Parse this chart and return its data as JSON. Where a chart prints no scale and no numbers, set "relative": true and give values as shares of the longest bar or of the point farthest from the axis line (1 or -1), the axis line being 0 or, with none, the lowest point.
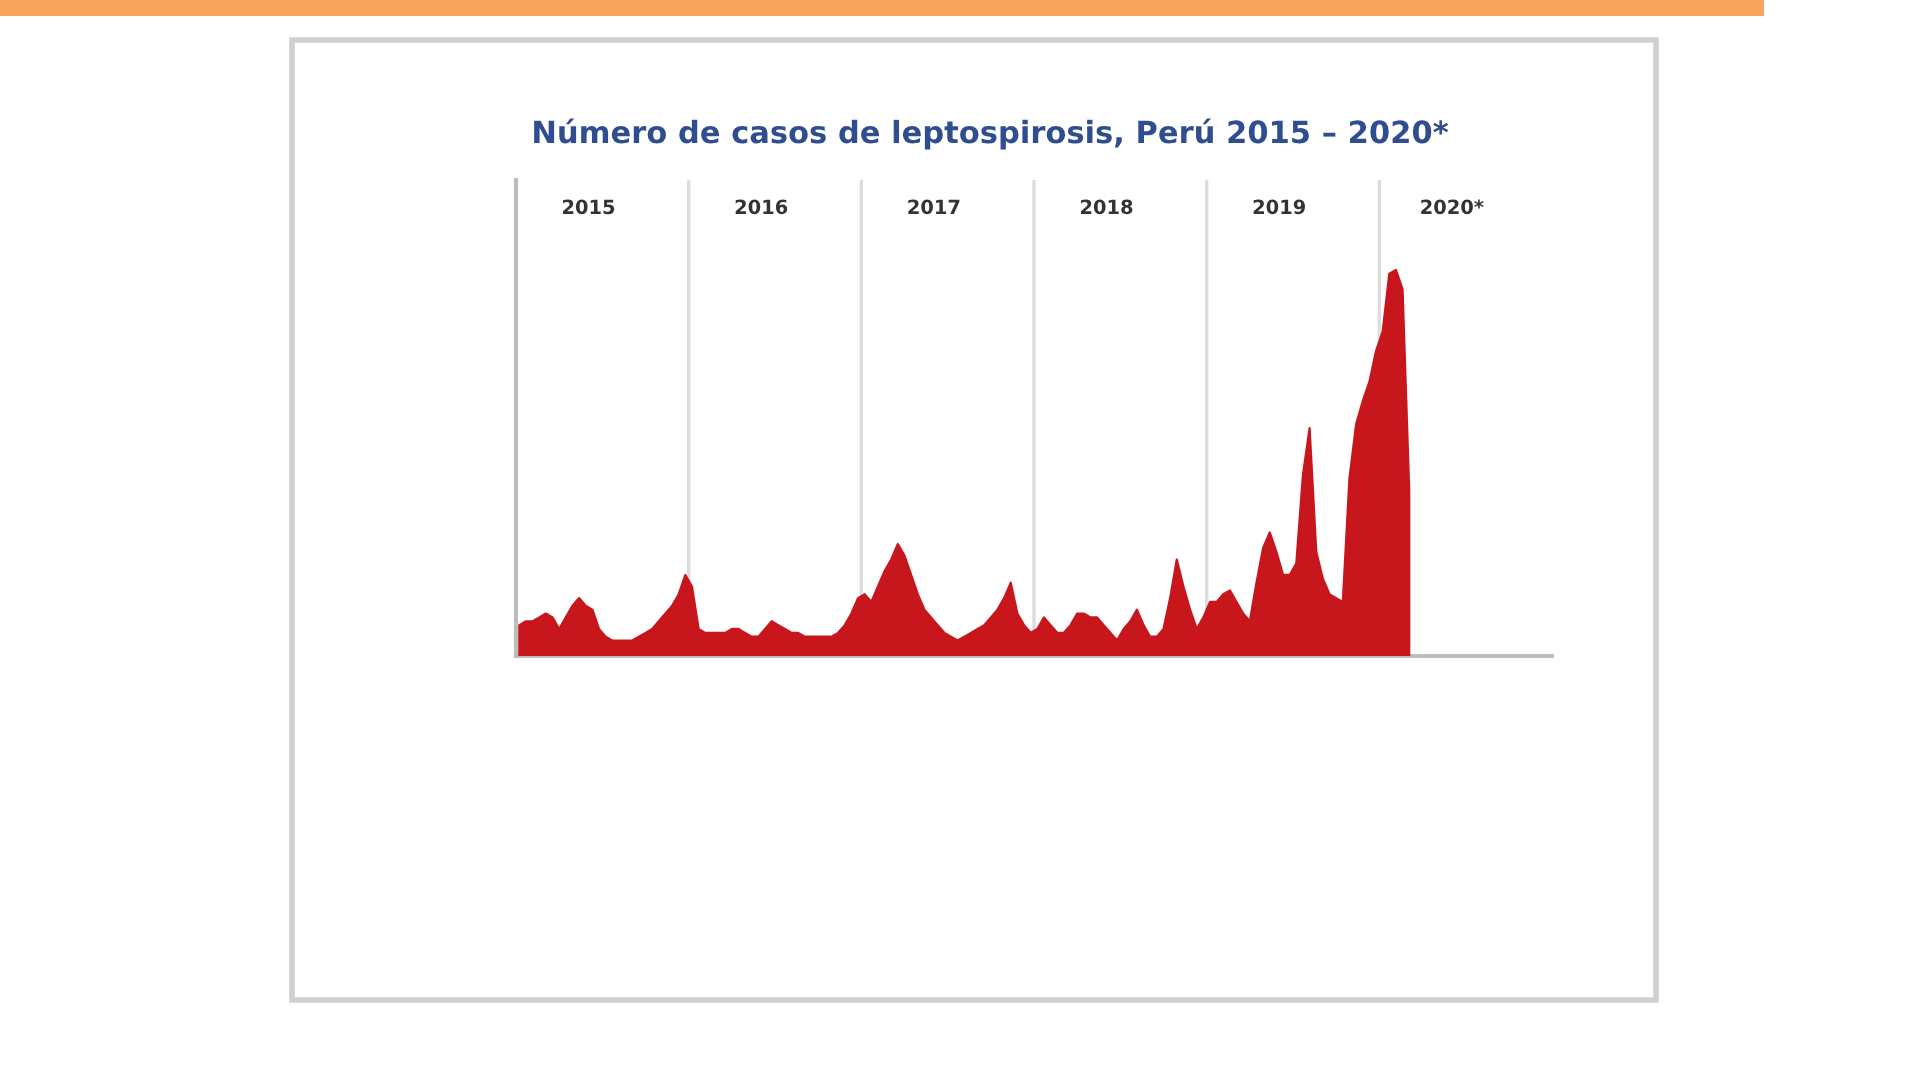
{
  "chart_data": {
    "type": "area",
    "title": "Número de casos de leptospirosis, Perú 2015 – 2020*",
    "relative": true,
    "categories": [
      null,
      null,
      null,
      null,
      null,
      null,
      null,
      null,
      null,
      null,
      null,
      null,
      null,
      null,
      null,
      null,
      null,
      null,
      null,
      null,
      null,
      null,
      null,
      null,
      null,
      null,
      null,
      null,
      null,
      null,
      null,
      null,
      null,
      null,
      null,
      null,
      null,
      null,
      null,
      null,
      null,
      null,
      null,
      null,
      null,
      null,
      null,
      null,
      null,
      null,
      null,
      null,
      null,
      null,
      null,
      null,
      null,
      null,
      null,
      null,
      null,
      null,
      null,
      null,
      null,
      null,
      null,
      null,
      null,
      null,
      null,
      null,
      null,
      null,
      null,
      null,
      null,
      null,
      null,
      null,
      null,
      null,
      null,
      null,
      null,
      null,
      null,
      null,
      null,
      null,
      null,
      null,
      null,
      null,
      null,
      null,
      null,
      null,
      null,
      null,
      null,
      null,
      null,
      null,
      null,
      null,
      null,
      null,
      null,
      null,
      null,
      null,
      null,
      null,
      null,
      null,
      null,
      null,
      null,
      null,
      null,
      null,
      null,
      null,
      null,
      null,
      null,
      null,
      null,
      null,
      null,
      null,
      null,
      null,
      null,
      null,
      null,
      null,
      null,
      null,
      null,
      null,
      null,
      null,
      null,
      null,
      null,
      null,
      null,
      null,
      null,
      null,
      null,
      null,
      null,
      null
    ],
    "series": [
      {
        "color": "#c8161d",
        "values": [
          0.08,
          0.09,
          0.09,
          0.1,
          0.11,
          0.1,
          0.07,
          0.1,
          0.13,
          0.15,
          0.13,
          0.12,
          0.07,
          0.05,
          0.04,
          0.04,
          0.04,
          0.04,
          0.05,
          0.06,
          0.07,
          0.09,
          0.11,
          0.13,
          0.16,
          0.21,
          0.18,
          0.07,
          0.06,
          0.06,
          0.06,
          0.06,
          0.07,
          0.07,
          0.06,
          0.05,
          0.05,
          0.07,
          0.09,
          0.08,
          0.07,
          0.06,
          0.06,
          0.05,
          0.05,
          0.05,
          0.05,
          0.05,
          0.06,
          0.08,
          0.11,
          0.15,
          0.16,
          0.14,
          0.18,
          0.22,
          0.25,
          0.29,
          0.26,
          0.21,
          0.16,
          0.12,
          0.1,
          0.08,
          0.06,
          0.05,
          0.04,
          0.05,
          0.06,
          0.07,
          0.08,
          0.1,
          0.12,
          0.15,
          0.19,
          0.11,
          0.08,
          0.06,
          0.07,
          0.1,
          0.08,
          0.06,
          0.06,
          0.08,
          0.11,
          0.11,
          0.1,
          0.1,
          0.08,
          0.06,
          0.04,
          0.07,
          0.09,
          0.12,
          0.08,
          0.05,
          0.05,
          0.07,
          0.15,
          0.25,
          0.18,
          0.12,
          0.07,
          0.1,
          0.14,
          0.14,
          0.16,
          0.17,
          0.14,
          0.11,
          0.09,
          0.19,
          0.28,
          0.32,
          0.27,
          0.21,
          0.21,
          0.24,
          0.47,
          0.59,
          0.27,
          0.2,
          0.16,
          0.15,
          0.14,
          0.46,
          0.6,
          0.66,
          0.71,
          0.79,
          0.84,
          0.99,
          1,
          0.95,
          0.43,
          null,
          null,
          null,
          null,
          null,
          null,
          null,
          null,
          null,
          null,
          null,
          null,
          null,
          null,
          null,
          null,
          null,
          null,
          null,
          null,
          null
        ]
      }
    ],
    "annotations": [
      "2015",
      "2016",
      "2017",
      "2018",
      "2019",
      "2020*"
    ]
  }
}
